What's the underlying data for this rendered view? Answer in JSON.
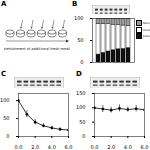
{
  "panel_labels": [
    "A",
    "B",
    "C",
    "D"
  ],
  "diagram": {
    "caption": "Replenishment of additional fresh medium"
  },
  "chart_data": [
    {
      "type": "bar",
      "stacked": true,
      "categories": [
        null,
        null,
        null,
        null,
        null,
        null,
        null
      ],
      "series": [
        {
          "name": "Extended",
          "color": "#111111",
          "values": [
            18,
            22,
            25,
            28,
            30,
            31,
            33
          ]
        },
        {
          "name": "Intermediate",
          "color": "#ffffff",
          "values": [
            70,
            66,
            62,
            58,
            55,
            53,
            50
          ]
        },
        {
          "name": "Nonextended",
          "color": "#9a9a9a",
          "values": [
            12,
            12,
            13,
            14,
            15,
            16,
            17
          ]
        }
      ],
      "ylim": [
        0,
        100
      ],
      "yticks": [
        0,
        50,
        100
      ],
      "tick_labels": "y",
      "legend": "right"
    },
    {
      "type": "line",
      "x": [
        0,
        1,
        2,
        3,
        4,
        5,
        6
      ],
      "values": [
        100,
        62,
        40,
        30,
        24,
        20,
        18
      ],
      "errors": [
        0,
        10,
        8,
        6,
        5,
        5,
        4
      ],
      "color": "#000000",
      "marker": "circle",
      "xlim": [
        0,
        6
      ],
      "xticks": [
        0,
        2,
        4,
        6
      ],
      "ylim": [
        0,
        120
      ],
      "yticks": [
        0,
        50,
        100
      ]
    },
    {
      "type": "line",
      "x": [
        0,
        1,
        2,
        3,
        4,
        5,
        6
      ],
      "values": [
        100,
        96,
        92,
        98,
        94,
        97,
        93
      ],
      "errors": [
        0,
        12,
        10,
        12,
        9,
        11,
        10
      ],
      "color": "#000000",
      "marker": "circle",
      "xlim": [
        0,
        6
      ],
      "xticks": [
        0,
        2,
        4,
        6
      ],
      "ylim": [
        0,
        150
      ],
      "yticks": [
        0,
        50,
        100,
        150
      ]
    }
  ]
}
